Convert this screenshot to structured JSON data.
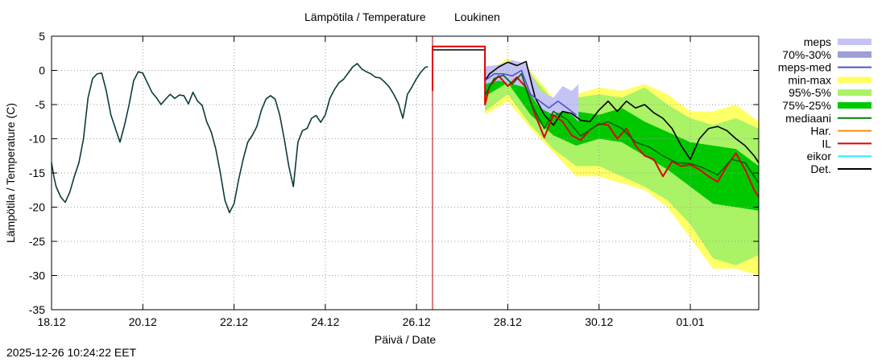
{
  "chart_data": {
    "type": "line",
    "title": "Lämpötila / Temperature",
    "station": "Loukinen",
    "xlabel": "Päivä / Date",
    "ylabel": "Lämpötila / Temperature (C)",
    "ylim": [
      -35,
      5
    ],
    "xlim_days": [
      0,
      15.5
    ],
    "yticks": [
      5,
      0,
      -5,
      -10,
      -15,
      -20,
      -25,
      -30,
      -35
    ],
    "xticks": [
      {
        "label": "18.12",
        "day": 0
      },
      {
        "label": "20.12",
        "day": 2
      },
      {
        "label": "22.12",
        "day": 4
      },
      {
        "label": "24.12",
        "day": 6
      },
      {
        "label": "26.12",
        "day": 8
      },
      {
        "label": "28.12",
        "day": 10
      },
      {
        "label": "30.12",
        "day": 12
      },
      {
        "label": "01.01",
        "day": 14
      }
    ],
    "grid": true,
    "now_marker_day": 8.35,
    "legend": [
      {
        "label": "meps",
        "color": "#c4c4f4",
        "style": "band"
      },
      {
        "label": "70%-30%",
        "color": "#9d9dd9",
        "style": "band"
      },
      {
        "label": "meps-med",
        "color": "#5050cc",
        "style": "line"
      },
      {
        "label": "min-max",
        "color": "#ffff66",
        "style": "band"
      },
      {
        "label": "95%-5%",
        "color": "#aaf266",
        "style": "band"
      },
      {
        "label": "75%-25%",
        "color": "#00c800",
        "style": "band"
      },
      {
        "label": "mediaani",
        "color": "#008000",
        "style": "line"
      },
      {
        "label": "Har.",
        "color": "#ff8c00",
        "style": "line"
      },
      {
        "label": "IL",
        "color": "#e00000",
        "style": "line"
      },
      {
        "label": "eikor",
        "color": "#33e8ff",
        "style": "line"
      },
      {
        "label": "Det.",
        "color": "#000000",
        "style": "line"
      }
    ],
    "series": [
      {
        "name": "observed",
        "color": "#0d3b3b",
        "x": [
          0,
          0.05,
          0.1,
          0.2,
          0.3,
          0.4,
          0.5,
          0.6,
          0.7,
          0.8,
          0.9,
          1.0,
          1.1,
          1.2,
          1.3,
          1.4,
          1.5,
          1.6,
          1.7,
          1.8,
          1.9,
          2.0,
          2.1,
          2.2,
          2.3,
          2.4,
          2.5,
          2.6,
          2.7,
          2.8,
          2.9,
          3.0,
          3.1,
          3.2,
          3.3,
          3.4,
          3.5,
          3.6,
          3.7,
          3.8,
          3.9,
          4.0,
          4.1,
          4.2,
          4.3,
          4.4,
          4.5,
          4.6,
          4.7,
          4.8,
          4.9,
          5.0,
          5.1,
          5.2,
          5.3,
          5.4,
          5.5,
          5.6,
          5.7,
          5.8,
          5.9,
          6.0,
          6.1,
          6.2,
          6.3,
          6.4,
          6.5,
          6.6,
          6.7,
          6.8,
          6.9,
          7.0,
          7.1,
          7.2,
          7.3,
          7.4,
          7.5,
          7.6,
          7.7,
          7.8,
          7.9,
          8.0,
          8.1,
          8.2,
          8.25
        ],
        "y": [
          -13.5,
          -15.5,
          -17,
          -18.5,
          -19.3,
          -17.8,
          -15.5,
          -13.5,
          -10,
          -4,
          -1.2,
          -0.5,
          -0.4,
          -3,
          -6.5,
          -8.5,
          -10.5,
          -8,
          -5,
          -1.5,
          -0.2,
          -0.4,
          -1.8,
          -3.2,
          -4,
          -5,
          -4.2,
          -3.5,
          -4.1,
          -3.6,
          -3.7,
          -4.9,
          -3.2,
          -4.5,
          -5.1,
          -7.5,
          -9,
          -11.5,
          -15,
          -19,
          -20.8,
          -19.5,
          -16,
          -13,
          -10.5,
          -9.5,
          -8.2,
          -5.8,
          -4.2,
          -3.7,
          -4.2,
          -6.5,
          -10,
          -14,
          -17,
          -10.5,
          -8.8,
          -8.5,
          -7,
          -6.6,
          -7.6,
          -6.5,
          -4.1,
          -2.8,
          -1.8,
          -1.3,
          -0.4,
          0.5,
          1,
          0.2,
          -0.2,
          -0.5,
          -1,
          -1.1,
          -1.7,
          -2.4,
          -3.5,
          -4.8,
          -7,
          -3.5,
          -2.4,
          -1.2,
          -0.2,
          0.5,
          0.5
        ]
      },
      {
        "name": "Det.",
        "color": "#000000",
        "x": [
          8.35,
          8.35,
          9.5,
          9.5,
          9.6,
          9.8,
          10.0,
          10.2,
          10.4,
          10.6,
          10.8,
          11.0,
          11.2,
          11.4,
          11.6,
          11.8,
          12.0,
          12.2,
          12.4,
          12.6,
          12.8,
          13.0,
          13.2,
          13.4,
          13.6,
          13.8,
          14.0,
          14.2,
          14.4,
          14.6,
          14.8,
          15.0,
          15.2,
          15.4,
          15.5
        ],
        "y": [
          -3,
          3,
          3,
          -1.5,
          -0.5,
          0.5,
          1.2,
          0.7,
          1.3,
          -4,
          -6.5,
          -8,
          -6,
          -6.3,
          -7.3,
          -7.5,
          -5.8,
          -4.5,
          -6,
          -4.5,
          -5.5,
          -5,
          -6.2,
          -7,
          -8.5,
          -11,
          -13,
          -10,
          -8.5,
          -8.2,
          -8.8,
          -10,
          -11,
          -12.5,
          -13.5
        ]
      },
      {
        "name": "IL",
        "color": "#e00000",
        "x": [
          8.35,
          8.35,
          9.5,
          9.5,
          9.6,
          9.8,
          10.0,
          10.2,
          10.4,
          10.6,
          10.8,
          11.0,
          11.2,
          11.4,
          11.6,
          11.8,
          12.0,
          12.2,
          12.4,
          12.6,
          12.8,
          13.0,
          13.2,
          13.4,
          13.6,
          13.8,
          14.0,
          14.2,
          14.4,
          14.6,
          14.8,
          15.0,
          15.2,
          15.4,
          15.5
        ],
        "y": [
          -3,
          3.5,
          3.5,
          -5,
          -2.3,
          -0.8,
          -2.3,
          -1,
          -2.5,
          -6.5,
          -9.8,
          -6.5,
          -7.5,
          -9.5,
          -10.2,
          -8.7,
          -7.8,
          -8,
          -10,
          -8.5,
          -11,
          -12.5,
          -13,
          -15.5,
          -13.3,
          -14,
          -13.8,
          -14.5,
          -15.5,
          -16.3,
          -14,
          -12.1,
          -14.5,
          -17.5,
          -18.5
        ]
      },
      {
        "name": "mediaani",
        "color": "#006400",
        "x": [
          9.5,
          9.7,
          9.9,
          10.1,
          10.3,
          10.5,
          10.8,
          11.0,
          11.3,
          11.6,
          11.9,
          12.2,
          12.5,
          12.8,
          13.1,
          13.4,
          13.7,
          14.0,
          14.3,
          14.6,
          14.9,
          15.2,
          15.5
        ],
        "y": [
          -3.6,
          -1.2,
          -0.7,
          -2,
          -0.5,
          -4.7,
          -8.5,
          -6,
          -7.2,
          -9.6,
          -8.2,
          -7.5,
          -8.5,
          -10.5,
          -11.2,
          -12.5,
          -13.5,
          -13.6,
          -14.3,
          -15.3,
          -13,
          -13.5,
          -16.5
        ]
      },
      {
        "name": "meps-med",
        "color": "#5050cc",
        "x": [
          9.5,
          9.7,
          9.9,
          10.1,
          10.3,
          10.5,
          10.7,
          10.9,
          11.1,
          11.3,
          11.5
        ],
        "y": [
          -1.5,
          -0.5,
          -0.5,
          -0.8,
          0,
          -3.5,
          -4.5,
          -5.5,
          -4.5,
          -5.5,
          -6.5
        ]
      }
    ],
    "bands": [
      {
        "name": "min-max",
        "color": "#ffff66",
        "x": [
          9.5,
          10.0,
          10.5,
          11.0,
          11.5,
          12.0,
          12.5,
          13.0,
          13.5,
          14.0,
          14.5,
          15.0,
          15.5
        ],
        "low": [
          -6.5,
          -4.5,
          -8.5,
          -12,
          -15.5,
          -15.5,
          -16.5,
          -17.5,
          -20,
          -24.5,
          -29,
          -29,
          -30
        ],
        "high": [
          -0.5,
          1.8,
          0,
          -4,
          -3.5,
          -2.5,
          -3,
          -2,
          -3.5,
          -6,
          -6,
          -5,
          -7.5
        ]
      },
      {
        "name": "95%-5%",
        "color": "#aaf266",
        "x": [
          9.5,
          10.0,
          10.5,
          11.0,
          11.5,
          12.0,
          12.5,
          13.0,
          13.5,
          14.0,
          14.5,
          15.0,
          15.5
        ],
        "low": [
          -6,
          -3.5,
          -8,
          -11.5,
          -14,
          -14,
          -15.5,
          -17,
          -19,
          -22.5,
          -27.5,
          -28.5,
          -27
        ],
        "high": [
          -1,
          1.2,
          -0.5,
          -4.5,
          -4,
          -3.5,
          -4,
          -2.5,
          -5,
          -7,
          -8,
          -7,
          -8.5
        ]
      },
      {
        "name": "75%-25%",
        "color": "#00c800",
        "x": [
          9.5,
          10.0,
          10.5,
          11.0,
          11.5,
          12.0,
          12.5,
          13.0,
          13.5,
          14.0,
          14.5,
          15.0,
          15.5
        ],
        "low": [
          -3.8,
          -1.8,
          -6.5,
          -9.5,
          -11,
          -10,
          -10.5,
          -12.5,
          -14.5,
          -17,
          -19.5,
          -20,
          -20.5
        ],
        "high": [
          -2,
          0,
          -3,
          -5.5,
          -6,
          -6.5,
          -5.5,
          -7.5,
          -9,
          -10.5,
          -11,
          -11.5,
          -14
        ]
      },
      {
        "name": "meps",
        "color": "#c4c4f4",
        "x": [
          9.5,
          9.8,
          10.1,
          10.4,
          10.7,
          11.0,
          11.2,
          11.4,
          11.55
        ],
        "low": [
          -2,
          -1.5,
          -2,
          -2.5,
          -5.5,
          -6.5,
          -6,
          -6.5,
          -7.5
        ],
        "high": [
          0.6,
          0.8,
          1.5,
          1,
          -3,
          -4,
          -2.3,
          -3,
          -2
        ]
      }
    ]
  },
  "timestamp": "2025-12-26 10:24:22 EET"
}
